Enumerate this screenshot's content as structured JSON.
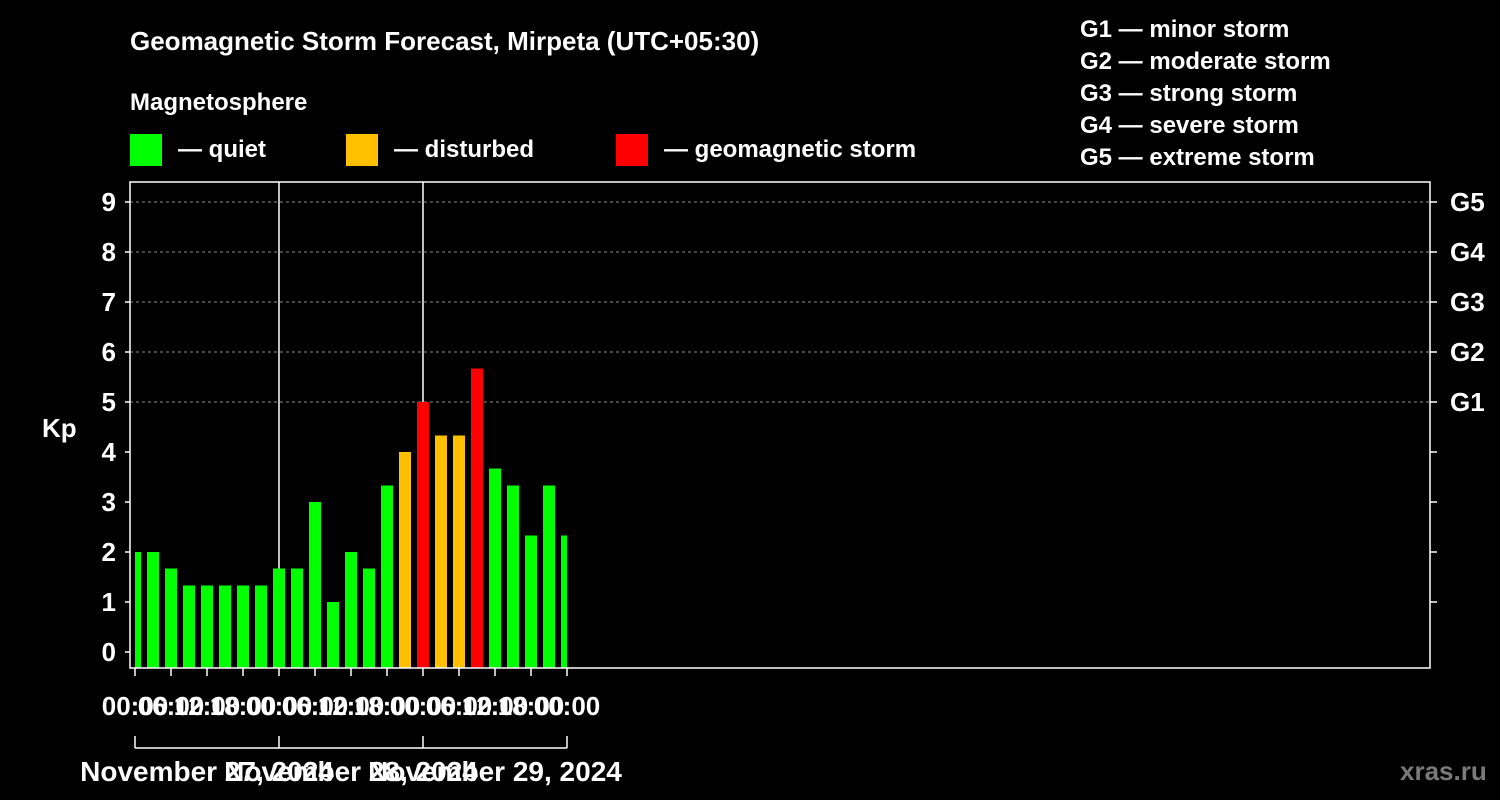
{
  "title": "Geomagnetic Storm Forecast, Mirpeta (UTC+05:30)",
  "legend": {
    "heading": "Magnetosphere",
    "items": [
      {
        "label": "— quiet",
        "color": "#00ff00"
      },
      {
        "label": "— disturbed",
        "color": "#ffc000"
      },
      {
        "label": "— geomagnetic storm",
        "color": "#ff0000"
      }
    ]
  },
  "scale_legend": [
    "G1 — minor storm",
    "G2 — moderate storm",
    "G3 — strong storm",
    "G4 — severe storm",
    "G5 — extreme storm"
  ],
  "watermark": "xras.ru",
  "chart_data": {
    "type": "bar",
    "ylabel": "Kp",
    "ylim": [
      0,
      9
    ],
    "yticks": [
      "0",
      "1",
      "2",
      "3",
      "4",
      "5",
      "6",
      "7",
      "8",
      "9"
    ],
    "right_ticks": [
      {
        "kp": 5,
        "label": "G1"
      },
      {
        "kp": 6,
        "label": "G2"
      },
      {
        "kp": 7,
        "label": "G3"
      },
      {
        "kp": 8,
        "label": "G4"
      },
      {
        "kp": 9,
        "label": "G5"
      }
    ],
    "grid": "horizontal dashed at 5-9",
    "xticks": [
      "00:00",
      "06:00",
      "12:00",
      "18:00",
      "00:00",
      "06:00",
      "12:00",
      "18:00",
      "00:00",
      "06:00",
      "12:00",
      "18:00",
      "00:00"
    ],
    "dates": [
      "November 27, 2024",
      "November 28, 2024",
      "November 29, 2024"
    ],
    "colors": {
      "quiet": "#00ff00",
      "disturbed": "#ffc000",
      "storm": "#ff0000"
    },
    "bars": [
      {
        "start_h": 0,
        "end_h": 1.5,
        "kp": 2.0,
        "level": "quiet"
      },
      {
        "start_h": 1.5,
        "end_h": 4.5,
        "kp": 2.0,
        "level": "quiet"
      },
      {
        "start_h": 4.5,
        "end_h": 7.5,
        "kp": 1.67,
        "level": "quiet"
      },
      {
        "start_h": 7.5,
        "end_h": 10.5,
        "kp": 1.33,
        "level": "quiet"
      },
      {
        "start_h": 10.5,
        "end_h": 13.5,
        "kp": 1.33,
        "level": "quiet"
      },
      {
        "start_h": 13.5,
        "end_h": 16.5,
        "kp": 1.33,
        "level": "quiet"
      },
      {
        "start_h": 16.5,
        "end_h": 19.5,
        "kp": 1.33,
        "level": "quiet"
      },
      {
        "start_h": 19.5,
        "end_h": 22.5,
        "kp": 1.33,
        "level": "quiet"
      },
      {
        "start_h": 22.5,
        "end_h": 25.5,
        "kp": 1.67,
        "level": "quiet"
      },
      {
        "start_h": 25.5,
        "end_h": 28.5,
        "kp": 1.67,
        "level": "quiet"
      },
      {
        "start_h": 28.5,
        "end_h": 31.5,
        "kp": 3.0,
        "level": "quiet"
      },
      {
        "start_h": 31.5,
        "end_h": 34.5,
        "kp": 1.0,
        "level": "quiet"
      },
      {
        "start_h": 34.5,
        "end_h": 37.5,
        "kp": 2.0,
        "level": "quiet"
      },
      {
        "start_h": 37.5,
        "end_h": 40.5,
        "kp": 1.67,
        "level": "quiet"
      },
      {
        "start_h": 40.5,
        "end_h": 43.5,
        "kp": 3.33,
        "level": "quiet"
      },
      {
        "start_h": 43.5,
        "end_h": 46.5,
        "kp": 4.0,
        "level": "disturbed"
      },
      {
        "start_h": 46.5,
        "end_h": 49.5,
        "kp": 5.0,
        "level": "storm"
      },
      {
        "start_h": 49.5,
        "end_h": 52.5,
        "kp": 4.33,
        "level": "disturbed"
      },
      {
        "start_h": 52.5,
        "end_h": 55.5,
        "kp": 4.33,
        "level": "disturbed"
      },
      {
        "start_h": 55.5,
        "end_h": 58.5,
        "kp": 5.67,
        "level": "storm"
      },
      {
        "start_h": 58.5,
        "end_h": 61.5,
        "kp": 3.67,
        "level": "quiet"
      },
      {
        "start_h": 61.5,
        "end_h": 64.5,
        "kp": 3.33,
        "level": "quiet"
      },
      {
        "start_h": 64.5,
        "end_h": 67.5,
        "kp": 2.33,
        "level": "quiet"
      },
      {
        "start_h": 67.5,
        "end_h": 70.5,
        "kp": 3.33,
        "level": "quiet"
      },
      {
        "start_h": 70.5,
        "end_h": 72,
        "kp": 2.33,
        "level": "quiet"
      }
    ]
  }
}
